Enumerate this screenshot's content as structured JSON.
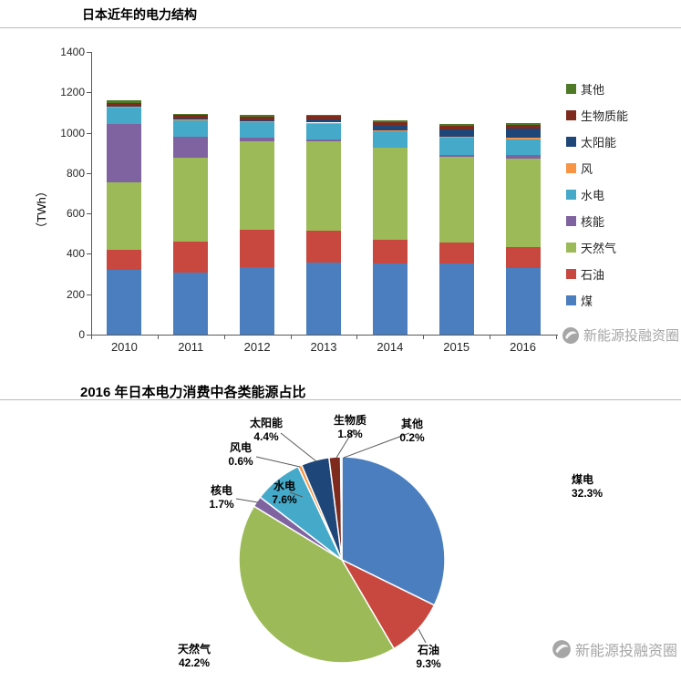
{
  "page": {
    "background": "#ffffff"
  },
  "watermark": {
    "text": "新能源投融资圈",
    "color": "#a6a6a6"
  },
  "chart_data": [
    {
      "type": "bar",
      "stacked": true,
      "title": "日本近年的电力结构",
      "xlabel": "",
      "ylabel": "（TWh）",
      "ylim": [
        0,
        1400
      ],
      "ytick_step": 200,
      "grid": false,
      "legend_position": "right",
      "categories": [
        "2010",
        "2011",
        "2012",
        "2013",
        "2014",
        "2015",
        "2016"
      ],
      "series": [
        {
          "name": "煤",
          "color": "#4A7EBE",
          "values": [
            320,
            306,
            334,
            357,
            352,
            352,
            330
          ]
        },
        {
          "name": "石油",
          "color": "#C8483F",
          "values": [
            98,
            155,
            185,
            160,
            116,
            102,
            105
          ]
        },
        {
          "name": "天然气",
          "color": "#9CBB58",
          "values": [
            335,
            415,
            440,
            440,
            460,
            425,
            435
          ]
        },
        {
          "name": "核能",
          "color": "#7F63A1",
          "values": [
            288,
            102,
            16,
            9,
            0,
            9,
            18
          ]
        },
        {
          "name": "水电",
          "color": "#45A9C9",
          "values": [
            85,
            85,
            76,
            79,
            80,
            87,
            80
          ]
        },
        {
          "name": "风",
          "color": "#F79545",
          "values": [
            4,
            4,
            5,
            5,
            5,
            5,
            6
          ]
        },
        {
          "name": "太阳能",
          "color": "#1F4679",
          "values": [
            4,
            5,
            7,
            14,
            23,
            35,
            46
          ]
        },
        {
          "name": "生物质能",
          "color": "#7E2B1E",
          "values": [
            15,
            15,
            16,
            18,
            18,
            18,
            20
          ]
        },
        {
          "name": "其他",
          "color": "#4E7A27",
          "values": [
            10,
            8,
            8,
            8,
            8,
            8,
            8
          ]
        }
      ]
    },
    {
      "type": "pie",
      "title": "2016 年日本电力消费中各类能源占比",
      "start_angle_deg": 0,
      "direction": "clockwise",
      "slices": [
        {
          "name": "煤电",
          "value": 32.3,
          "pct": "32.3%",
          "color": "#4A7EBE"
        },
        {
          "name": "石油",
          "value": 9.3,
          "pct": "9.3%",
          "color": "#C8483F"
        },
        {
          "name": "天然气",
          "value": 42.2,
          "pct": "42.2%",
          "color": "#9CBB58"
        },
        {
          "name": "核电",
          "value": 1.7,
          "pct": "1.7%",
          "color": "#7F63A1"
        },
        {
          "name": "水电",
          "value": 7.6,
          "pct": "7.6%",
          "color": "#45A9C9"
        },
        {
          "name": "风电",
          "value": 0.6,
          "pct": "0.6%",
          "color": "#F79545"
        },
        {
          "name": "太阳能",
          "value": 4.4,
          "pct": "4.4%",
          "color": "#1F4679"
        },
        {
          "name": "生物质",
          "value": 1.8,
          "pct": "1.8%",
          "color": "#7E2B1E"
        },
        {
          "name": "其他",
          "value": 0.2,
          "pct": "0.2%",
          "color": "#4E7A27"
        }
      ]
    }
  ]
}
